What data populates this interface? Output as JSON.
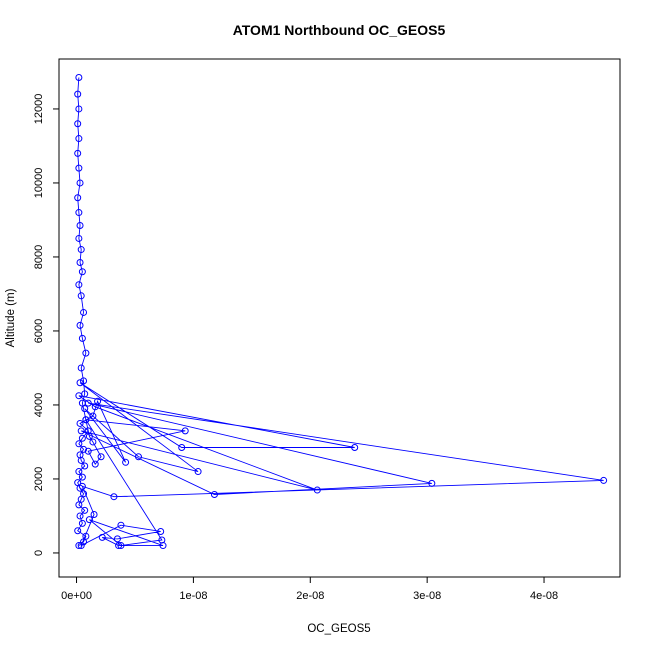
{
  "chart_data": {
    "type": "line",
    "title": "ATOM1 Northbound OC_GEOS5",
    "xlabel": "OC_GEOS5",
    "ylabel": "Altitude (m)",
    "xlim": [
      -1.5e-09,
      4.65e-08
    ],
    "ylim": [
      -650,
      13350
    ],
    "x_ticks": [
      0,
      1e-08,
      2e-08,
      3e-08,
      4e-08
    ],
    "x_tick_labels": [
      "0e+00",
      "1e-08",
      "2e-08",
      "3e-08",
      "4e-08"
    ],
    "y_ticks": [
      0,
      2000,
      4000,
      6000,
      8000,
      10000,
      12000
    ],
    "y_tick_labels": [
      "0",
      "2000",
      "4000",
      "6000",
      "8000",
      "10000",
      "12000"
    ],
    "series_color": "#0000ff",
    "markers": "open-circle",
    "series": [
      {
        "x": [
          2e-10,
          6e-10,
          8e-10,
          1e-10,
          5e-10,
          3e-10,
          7e-10,
          2e-10,
          4e-10,
          6e-10,
          3e-10,
          1e-10,
          5e-10,
          2e-10,
          7e-10,
          4e-10,
          3e-10,
          6e-10,
          2e-10,
          5e-10,
          1e-09,
          3e-10,
          1.4e-09,
          1.8e-09,
          4.2e-09,
          7e-10,
          5.3e-09,
          1.04e-08,
          3e-10,
          9e-09,
          2.38e-08,
          2e-10,
          1.6e-09,
          2.06e-08,
          4e-10,
          1.18e-08,
          3.04e-08,
          1e-09,
          4.51e-08,
          3.2e-09,
          5e-10,
          1.5e-09,
          4e-10,
          3.8e-09,
          7.2e-09,
          3.5e-09,
          2.2e-09,
          3.6e-09,
          7.4e-09,
          1.1e-09,
          3.8e-09,
          7.3e-09,
          8e-10,
          9.3e-09,
          1e-09,
          1.6e-09,
          2.1e-09,
          1.4e-09,
          1.1e-09,
          8e-10,
          5e-10,
          7e-10,
          6e-10,
          4e-10,
          8e-10,
          5e-10,
          3e-10,
          6e-10,
          4e-10,
          2e-10,
          5e-10,
          3e-10,
          4e-10,
          2e-10,
          3e-10,
          2e-10,
          1e-10,
          3e-10,
          2e-10,
          1e-10,
          2e-10,
          1e-10,
          2e-10,
          1e-10,
          2e-10
        ],
        "y": [
          200,
          300,
          450,
          600,
          800,
          1000,
          1150,
          1300,
          1450,
          1600,
          1750,
          1900,
          2050,
          2200,
          2350,
          2500,
          2650,
          2800,
          2950,
          3100,
          3300,
          3500,
          3700,
          4100,
          2450,
          3900,
          2600,
          2200,
          4600,
          2850,
          2850,
          4250,
          3950,
          1700,
          3300,
          1580,
          1880,
          4050,
          1960,
          1520,
          1800,
          1040,
          200,
          750,
          580,
          380,
          420,
          200,
          200,
          900,
          200,
          350,
          3600,
          3300,
          2750,
          2400,
          2600,
          3000,
          3150,
          3600,
          4050,
          4300,
          4650,
          5000,
          5400,
          5800,
          6150,
          6500,
          6950,
          7250,
          7600,
          7850,
          8200,
          8500,
          8850,
          9200,
          9600,
          10000,
          10400,
          10800,
          11200,
          11600,
          12000,
          12400,
          12850
        ]
      }
    ]
  }
}
